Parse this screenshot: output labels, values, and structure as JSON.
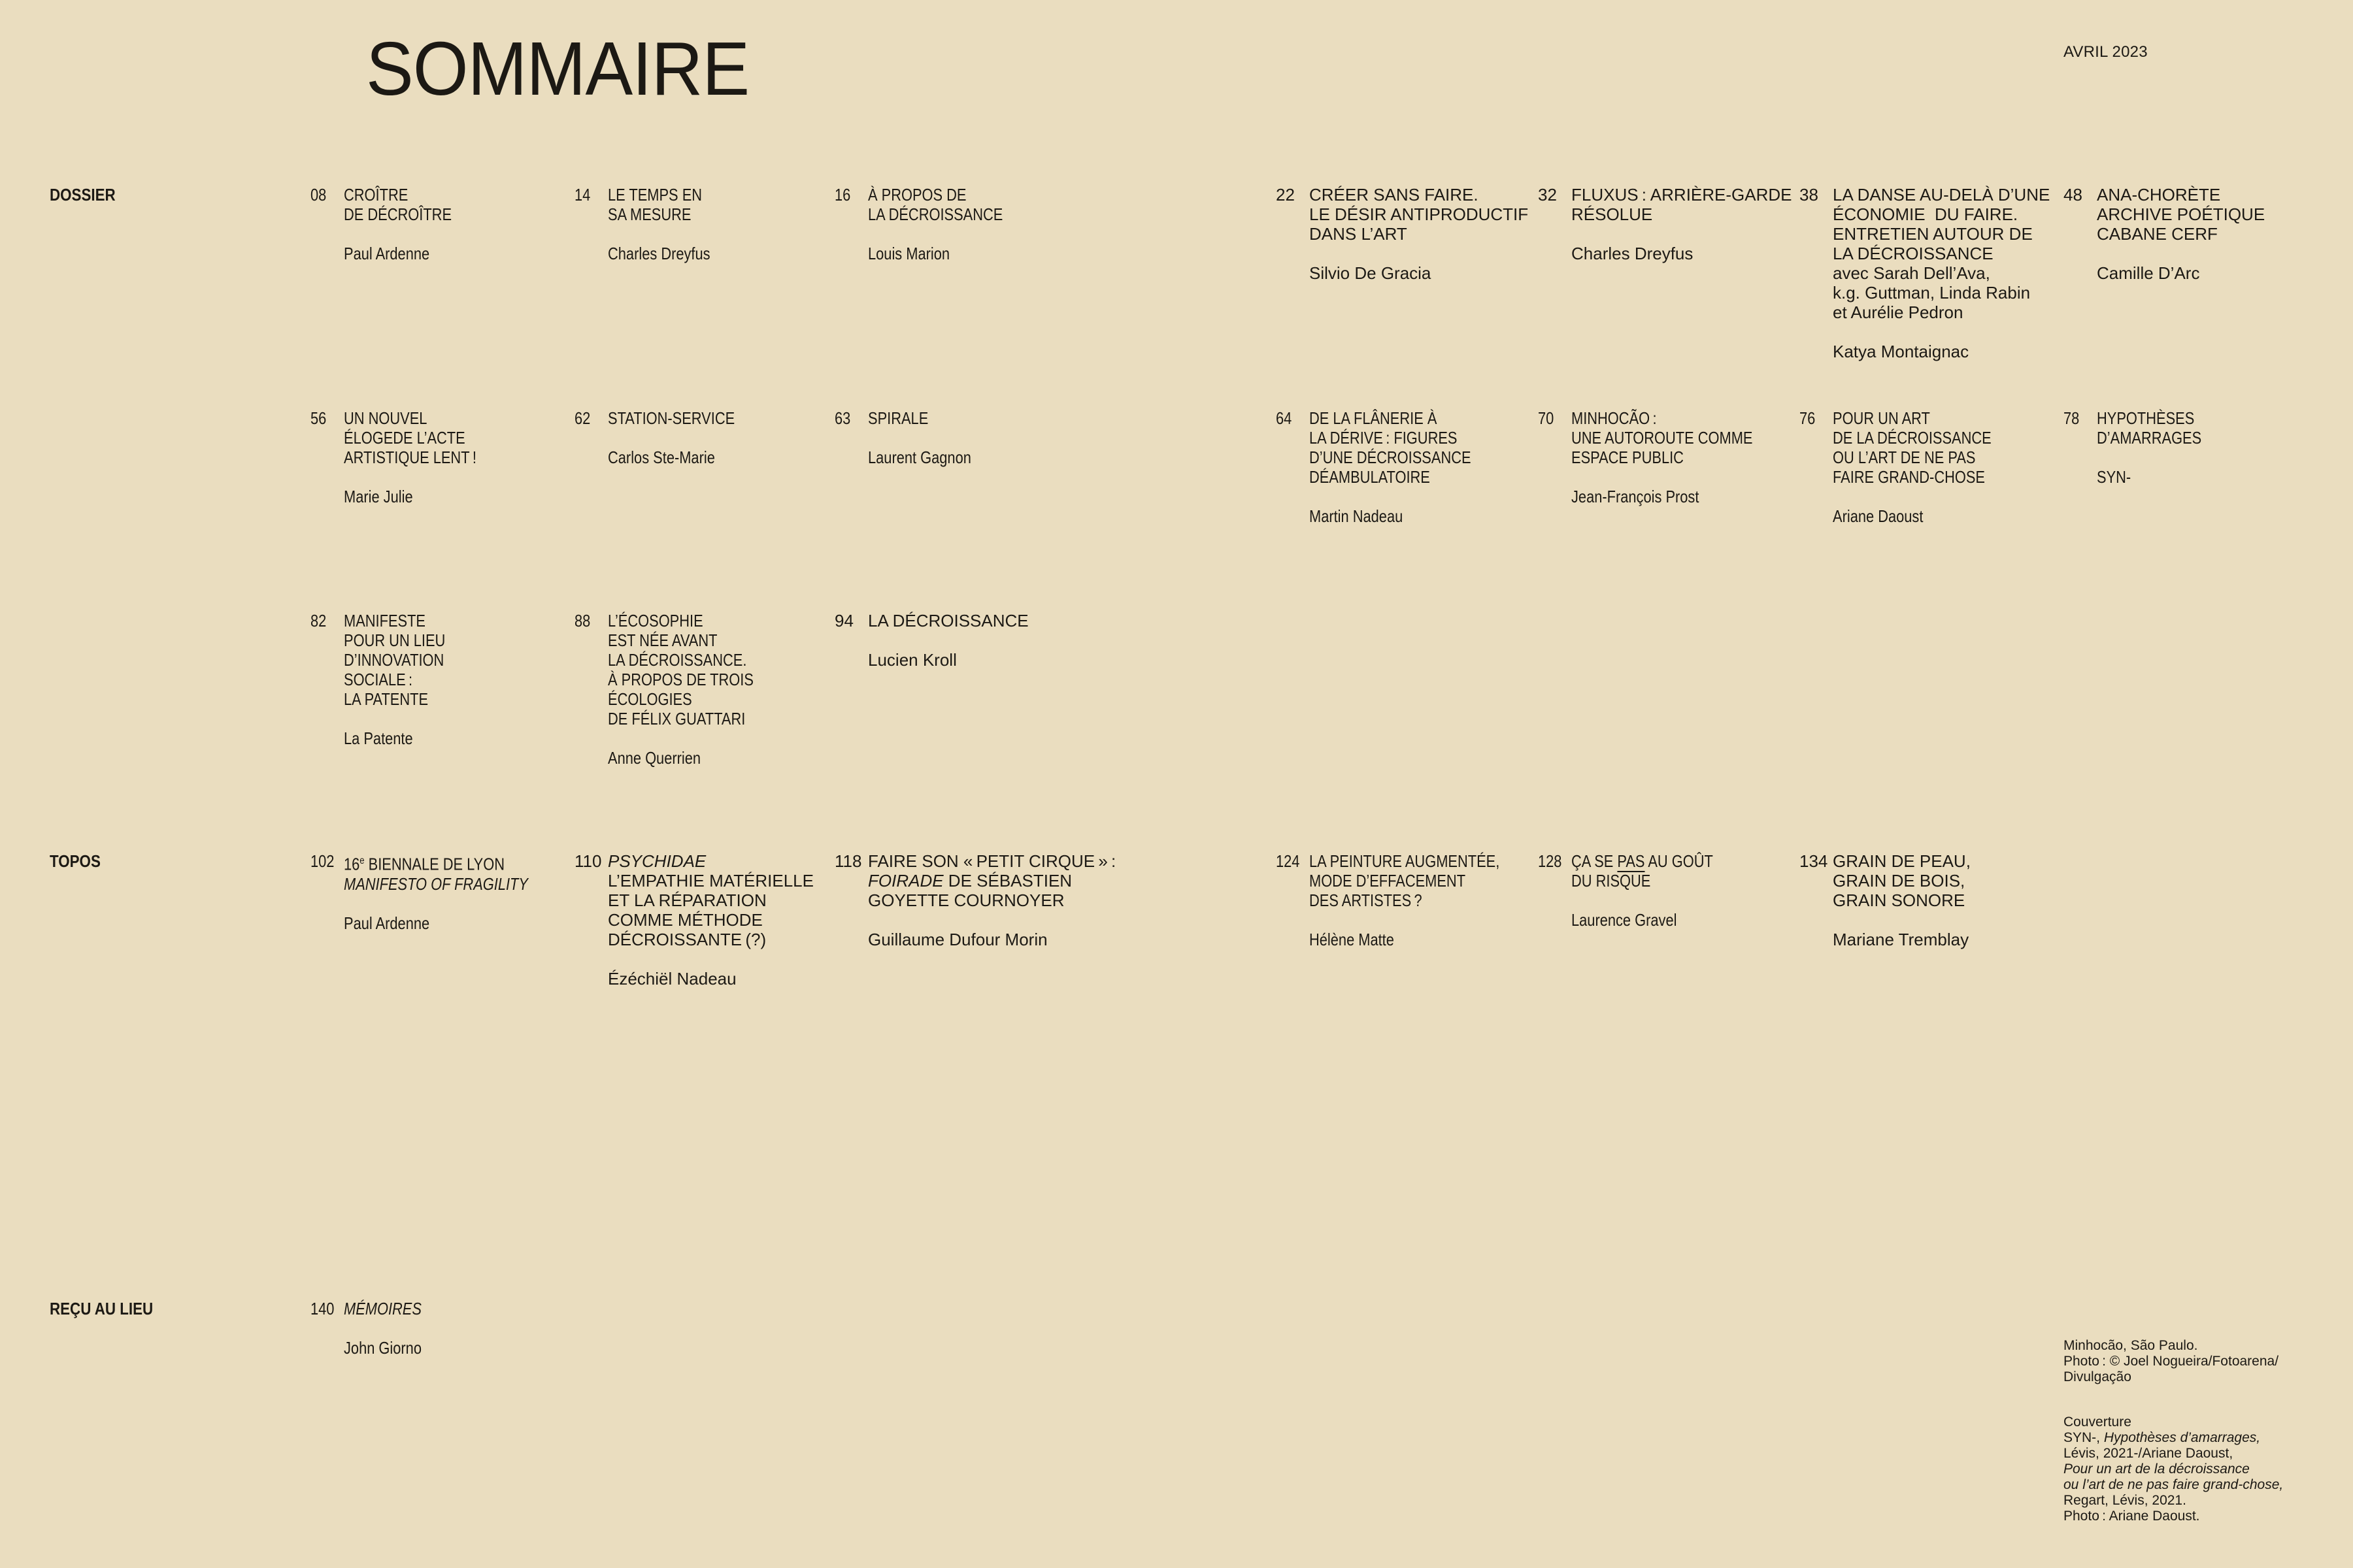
{
  "page": {
    "title": "SOMMAIRE",
    "issue_date": "AVRIL 2023",
    "background_color": "#EADDBF",
    "text_color": "#1C1914"
  },
  "sections": [
    {
      "label": "DOSSIER",
      "entries": [
        {
          "page": "08",
          "col": 0,
          "row": 0,
          "style": "condensed",
          "title_lines": [
            "CROÎTRE",
            "DE DÉCROÎTRE"
          ],
          "authors": [
            "Paul Ardenne"
          ]
        },
        {
          "page": "14",
          "col": 1,
          "row": 0,
          "style": "condensed",
          "title_lines": [
            "LE TEMPS EN",
            "SA MESURE"
          ],
          "authors": [
            "Charles Dreyfus"
          ]
        },
        {
          "page": "16",
          "col": 2,
          "row": 0,
          "style": "condensed",
          "title_lines": [
            "À PROPOS DE",
            "LA DÉCROISSANCE"
          ],
          "authors": [
            "Louis Marion"
          ]
        },
        {
          "page": "22",
          "col": 3,
          "row": 0,
          "style": "regular",
          "title_lines": [
            "CRÉER SANS FAIRE.",
            "LE DÉSIR ANTIPRODUCTIF",
            "DANS L’ART"
          ],
          "authors": [
            "Silvio De Gracia"
          ]
        },
        {
          "page": "32",
          "col": 4,
          "row": 0,
          "style": "regular",
          "title_lines": [
            "FLUXUS : ARRIÈRE-GARDE",
            "RÉSOLUE"
          ],
          "authors": [
            "Charles Dreyfus"
          ]
        },
        {
          "page": "38",
          "col": 5,
          "row": 0,
          "style": "regular",
          "title_lines": [
            "LA DANSE AU-DELÀ D’UNE",
            "ÉCONOMIE  DU FAIRE.",
            "ENTRETIEN AUTOUR DE",
            "LA DÉCROISSANCE",
            "avec Sarah Dell’Ava,",
            "k.g. Guttman, Linda Rabin",
            "et Aurélie Pedron"
          ],
          "authors": [
            "Katya Montaignac"
          ]
        },
        {
          "page": "48",
          "col": 6,
          "row": 0,
          "style": "regular",
          "title_lines": [
            "ANA-CHORÈTE",
            "ARCHIVE POÉTIQUE",
            "CABANE CERF"
          ],
          "authors": [
            "Camille D’Arc"
          ]
        },
        {
          "page": "56",
          "col": 0,
          "row": 1,
          "style": "condensed",
          "title_lines": [
            "UN NOUVEL",
            "ÉLOGEDE L’ACTE",
            "ARTISTIQUE LENT !"
          ],
          "authors": [
            "Marie Julie"
          ]
        },
        {
          "page": "62",
          "col": 1,
          "row": 1,
          "style": "condensed",
          "title_lines": [
            "STATION-SERVICE"
          ],
          "authors": [
            "Carlos Ste-Marie"
          ]
        },
        {
          "page": "63",
          "col": 2,
          "row": 1,
          "style": "condensed",
          "title_lines": [
            "SPIRALE"
          ],
          "authors": [
            "Laurent Gagnon"
          ]
        },
        {
          "page": "64",
          "col": 3,
          "row": 1,
          "style": "condensed",
          "title_lines": [
            "DE LA FLÂNERIE À",
            "LA DÉRIVE : FIGURES",
            "D’UNE DÉCROISSANCE",
            "DÉAMBULATOIRE"
          ],
          "authors": [
            "Martin Nadeau"
          ]
        },
        {
          "page": "70",
          "col": 4,
          "row": 1,
          "style": "condensed",
          "title_lines": [
            "MINHOCÃO :",
            "UNE AUTOROUTE COMME",
            "ESPACE PUBLIC"
          ],
          "authors": [
            "Jean-François Prost"
          ]
        },
        {
          "page": "76",
          "col": 5,
          "row": 1,
          "style": "condensed",
          "title_lines": [
            "POUR UN ART",
            "DE LA DÉCROISSANCE",
            "OU L’ART DE NE PAS",
            "FAIRE GRAND-CHOSE"
          ],
          "authors": [
            "Ariane Daoust"
          ]
        },
        {
          "page": "78",
          "col": 6,
          "row": 1,
          "style": "condensed",
          "title_lines": [
            "HYPOTHÈSES",
            "D’AMARRAGES"
          ],
          "authors": [
            "SYN-"
          ]
        },
        {
          "page": "82",
          "col": 0,
          "row": 2,
          "style": "condensed",
          "title_lines": [
            "MANIFESTE",
            "POUR UN LIEU",
            "D’INNOVATION",
            "SOCIALE :",
            "LA PATENTE"
          ],
          "authors": [
            "La Patente"
          ]
        },
        {
          "page": "88",
          "col": 1,
          "row": 2,
          "style": "condensed",
          "title_lines": [
            "L’ÉCOSOPHIE",
            "EST NÉE AVANT",
            "LA DÉCROISSANCE.",
            "À PROPOS DE TROIS",
            "ÉCOLOGIES",
            "DE FÉLIX GUATTARI"
          ],
          "authors": [
            "Anne Querrien"
          ]
        },
        {
          "page": "94",
          "col": 2,
          "row": 2,
          "style": "regular",
          "title_lines": [
            "LA DÉCROISSANCE"
          ],
          "authors": [
            "Lucien Kroll"
          ]
        }
      ]
    },
    {
      "label": "TOPOS",
      "entries": [
        {
          "page": "102",
          "col": 0,
          "row": 0,
          "style": "condensed",
          "title_lines": [
            [
              {
                "t": "16"
              },
              {
                "t": "e",
                "sup": true
              },
              {
                "t": " BIENNALE DE LYON"
              }
            ],
            [
              {
                "t": "MANIFESTO OF FRAGILITY",
                "i": true
              }
            ]
          ],
          "authors": [
            "Paul Ardenne"
          ]
        },
        {
          "page": "110",
          "col": 1,
          "row": 0,
          "style": "regular",
          "title_lines": [
            [
              {
                "t": "PSYCHIDAE",
                "i": true
              }
            ],
            "L’EMPATHIE MATÉRIELLE",
            "ET LA RÉPARATION",
            "COMME MÉTHODE",
            "DÉCROISSANTE (?)"
          ],
          "authors": [
            "Ézéchiël Nadeau"
          ]
        },
        {
          "page": "118",
          "col": 2,
          "row": 0,
          "style": "regular",
          "title_lines": [
            "FAIRE SON « PETIT CIRQUE » :",
            [
              {
                "t": "FOIRADE",
                "i": true
              },
              {
                "t": " DE SÉBASTIEN"
              }
            ],
            "GOYETTE COURNOYER"
          ],
          "authors": [
            "Guillaume Dufour Morin"
          ]
        },
        {
          "page": "124",
          "col": 3,
          "row": 0,
          "style": "condensed",
          "title_lines": [
            "LA PEINTURE AUGMENTÉE,",
            "MODE D’EFFACEMENT",
            "DES ARTISTES ?"
          ],
          "authors": [
            "Hélène Matte"
          ]
        },
        {
          "page": "128",
          "col": 4,
          "row": 0,
          "style": "condensed",
          "title_lines": [
            [
              {
                "t": "ÇA SE "
              },
              {
                "t": "PAS",
                "u": true
              },
              {
                "t": " AU GOÛT"
              }
            ],
            "DU RISQUE"
          ],
          "authors": [
            "Laurence Gravel"
          ]
        },
        {
          "page": "134",
          "col": 5,
          "row": 0,
          "style": "regular",
          "title_lines": [
            "GRAIN DE PEAU,",
            "GRAIN DE BOIS,",
            "GRAIN SONORE"
          ],
          "authors": [
            "Mariane Tremblay"
          ]
        }
      ]
    },
    {
      "label": "REÇU AU LIEU",
      "entries": [
        {
          "page": "140",
          "col": 0,
          "row": 0,
          "style": "condensed",
          "title_lines": [
            [
              {
                "t": "MÉMOIRES",
                "i": true
              }
            ]
          ],
          "authors": [
            "John Giorno"
          ]
        }
      ]
    }
  ],
  "credits": [
    {
      "lines": [
        "Minhocão, São Paulo.",
        "Photo : © Joel Nogueira/Fotoarena/",
        "Divulgação"
      ]
    },
    {
      "lines": [
        "Couverture",
        [
          {
            "t": "SYN-, "
          },
          {
            "t": "Hypothèses d’amarrages,",
            "i": true
          }
        ],
        "Lévis, 2021-/Ariane Daoust,",
        [
          {
            "t": "Pour un art de la décroissance",
            "i": true
          }
        ],
        [
          {
            "t": "ou l’art de ne pas faire grand-chose,",
            "i": true
          }
        ],
        "Regart, Lévis, 2021.",
        "Photo : Ariane Daoust."
      ]
    }
  ]
}
